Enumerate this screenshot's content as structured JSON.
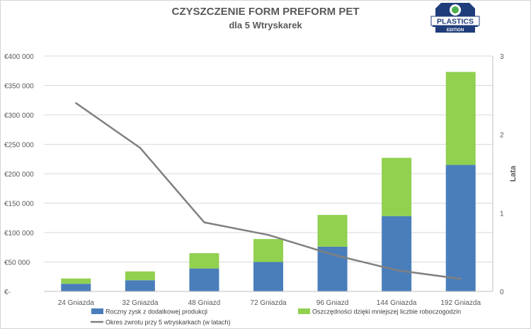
{
  "chart_data": {
    "type": "bar",
    "title": "CZYSZCZENIE FORM PREFORM PET",
    "subtitle": "dla 5 Wtryskarek",
    "categories": [
      "24 Gniazda",
      "32 Gniazda",
      "48 Gniazd",
      "72 Gniazda",
      "96 Gniazd",
      "144 Gniazda",
      "192 Gniazda"
    ],
    "series": [
      {
        "name": "Roczny zysk z dodatkowej produkcji",
        "type": "bar",
        "stack": "main",
        "color": "#4a7ebb",
        "values": [
          13000,
          19000,
          39000,
          50000,
          76000,
          128000,
          215000
        ]
      },
      {
        "name": "Oszczędności dzięki mniejszej liczbie roboczogodzin",
        "type": "bar",
        "stack": "main",
        "color": "#92d050",
        "values": [
          9000,
          15000,
          26000,
          39000,
          54000,
          99000,
          158000
        ]
      },
      {
        "name": "Okres zwrotu przy 5 wtryskarkach (w latach)",
        "type": "line",
        "axis": "right",
        "color": "#808080",
        "values": [
          2.4,
          1.83,
          0.88,
          0.72,
          0.47,
          0.27,
          0.16
        ]
      }
    ],
    "y_left": {
      "ylim": [
        0,
        400000
      ],
      "ticks": [
        "€-",
        "€50 000",
        "€100 000",
        "€150 000",
        "€200 000",
        "€250 000",
        "€300 000",
        "€350 000",
        "€400 000"
      ]
    },
    "y_right": {
      "label": "Lata",
      "ylim": [
        0,
        3
      ],
      "ticks": [
        "0",
        "1",
        "2",
        "3"
      ]
    },
    "grid": true,
    "legend_position": "bottom"
  },
  "logo": {
    "line1": "PLASTICS",
    "line2": "EDITION"
  }
}
